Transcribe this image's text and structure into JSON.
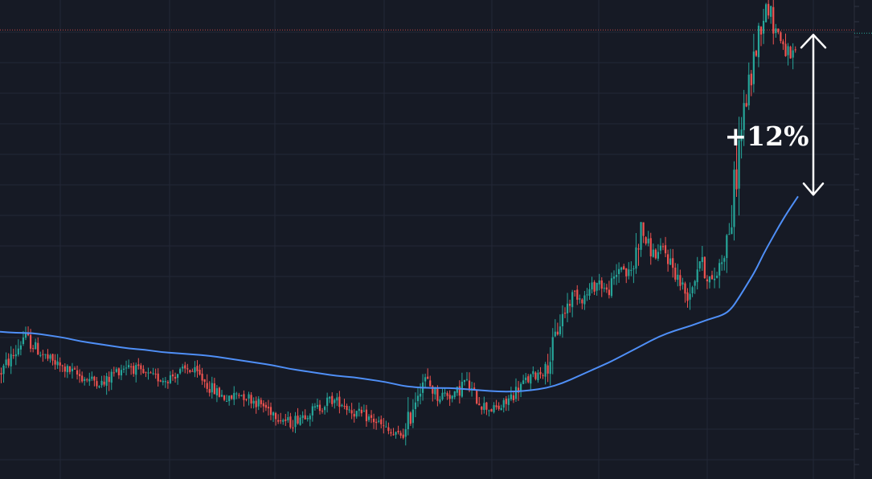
{
  "chart_data": {
    "type": "candlestick",
    "annotation": {
      "text": "+12%"
    },
    "colors": {
      "background": "#161a25",
      "grid": "#232836",
      "up": "#26a69a",
      "down": "#ef5350",
      "moving_average": "#4f8ff7",
      "annotation": "#ffffff",
      "price_line": "#ef5350"
    },
    "grid": true,
    "price_line_level": 115.5,
    "y_range": [
      78,
      118
    ],
    "moving_average": [
      [
        0,
        90.3
      ],
      [
        20,
        90.2
      ],
      [
        40,
        90.2
      ],
      [
        60,
        90.0
      ],
      [
        80,
        89.8
      ],
      [
        100,
        89.5
      ],
      [
        120,
        89.3
      ],
      [
        140,
        89.1
      ],
      [
        160,
        88.9
      ],
      [
        180,
        88.8
      ],
      [
        200,
        88.6
      ],
      [
        220,
        88.5
      ],
      [
        240,
        88.4
      ],
      [
        260,
        88.3
      ],
      [
        280,
        88.1
      ],
      [
        300,
        87.9
      ],
      [
        320,
        87.7
      ],
      [
        340,
        87.5
      ],
      [
        360,
        87.2
      ],
      [
        380,
        87.0
      ],
      [
        400,
        86.8
      ],
      [
        420,
        86.6
      ],
      [
        440,
        86.5
      ],
      [
        460,
        86.3
      ],
      [
        480,
        86.1
      ],
      [
        500,
        85.8
      ],
      [
        510,
        85.7
      ],
      [
        530,
        85.6
      ],
      [
        560,
        85.6
      ],
      [
        580,
        85.5
      ],
      [
        600,
        85.4
      ],
      [
        620,
        85.3
      ],
      [
        640,
        85.3
      ],
      [
        660,
        85.4
      ],
      [
        680,
        85.6
      ],
      [
        700,
        86.0
      ],
      [
        720,
        86.6
      ],
      [
        740,
        87.2
      ],
      [
        760,
        87.8
      ],
      [
        780,
        88.5
      ],
      [
        800,
        89.2
      ],
      [
        820,
        89.9
      ],
      [
        840,
        90.4
      ],
      [
        860,
        90.8
      ],
      [
        880,
        91.3
      ],
      [
        900,
        91.7
      ],
      [
        910,
        92.2
      ],
      [
        920,
        93.2
      ],
      [
        930,
        94.3
      ],
      [
        940,
        95.4
      ],
      [
        950,
        96.8
      ],
      [
        960,
        98.0
      ],
      [
        970,
        99.2
      ],
      [
        980,
        100.3
      ],
      [
        993,
        101.6
      ]
    ],
    "price_path": [
      [
        0,
        86.8
      ],
      [
        10,
        87.8
      ],
      [
        20,
        88.6
      ],
      [
        30,
        90.0
      ],
      [
        40,
        89.2
      ],
      [
        50,
        88.6
      ],
      [
        60,
        88.0
      ],
      [
        75,
        87.4
      ],
      [
        90,
        86.9
      ],
      [
        105,
        86.4
      ],
      [
        120,
        86.2
      ],
      [
        130,
        85.9
      ],
      [
        140,
        86.8
      ],
      [
        150,
        87.2
      ],
      [
        160,
        87.6
      ],
      [
        175,
        86.8
      ],
      [
        190,
        86.5
      ],
      [
        205,
        86.3
      ],
      [
        220,
        86.8
      ],
      [
        235,
        87.2
      ],
      [
        250,
        86.5
      ],
      [
        262,
        85.6
      ],
      [
        275,
        85.0
      ],
      [
        285,
        84.6
      ],
      [
        295,
        85.2
      ],
      [
        310,
        84.8
      ],
      [
        325,
        84.2
      ],
      [
        340,
        83.6
      ],
      [
        352,
        83.0
      ],
      [
        362,
        82.6
      ],
      [
        372,
        83.2
      ],
      [
        385,
        83.6
      ],
      [
        398,
        84.0
      ],
      [
        410,
        84.6
      ],
      [
        425,
        84.4
      ],
      [
        440,
        83.6
      ],
      [
        455,
        83.2
      ],
      [
        468,
        82.8
      ],
      [
        478,
        82.2
      ],
      [
        490,
        81.6
      ],
      [
        505,
        81.8
      ],
      [
        512,
        83.8
      ],
      [
        520,
        85.4
      ],
      [
        528,
        86.4
      ],
      [
        535,
        85.8
      ],
      [
        545,
        84.8
      ],
      [
        555,
        85.2
      ],
      [
        565,
        84.8
      ],
      [
        578,
        86.2
      ],
      [
        590,
        85.0
      ],
      [
        600,
        84.2
      ],
      [
        612,
        83.8
      ],
      [
        625,
        84.0
      ],
      [
        635,
        84.8
      ],
      [
        645,
        85.6
      ],
      [
        655,
        86.2
      ],
      [
        668,
        86.8
      ],
      [
        680,
        87.2
      ],
      [
        688,
        89.0
      ],
      [
        695,
        90.8
      ],
      [
        705,
        92.4
      ],
      [
        715,
        93.6
      ],
      [
        725,
        93.0
      ],
      [
        735,
        93.8
      ],
      [
        745,
        94.6
      ],
      [
        755,
        93.6
      ],
      [
        765,
        94.6
      ],
      [
        772,
        96.0
      ],
      [
        780,
        95.0
      ],
      [
        788,
        95.6
      ],
      [
        797,
        99.2
      ],
      [
        805,
        97.6
      ],
      [
        815,
        96.6
      ],
      [
        825,
        97.2
      ],
      [
        835,
        96.0
      ],
      [
        845,
        94.6
      ],
      [
        855,
        93.2
      ],
      [
        862,
        94.4
      ],
      [
        870,
        96.4
      ],
      [
        878,
        95.2
      ],
      [
        886,
        94.4
      ],
      [
        894,
        95.6
      ],
      [
        902,
        97.4
      ],
      [
        910,
        99.6
      ],
      [
        916,
        103.6
      ],
      [
        922,
        107.2
      ],
      [
        928,
        109.6
      ],
      [
        935,
        111.8
      ],
      [
        942,
        114.6
      ],
      [
        948,
        116.4
      ],
      [
        955,
        117.6
      ],
      [
        962,
        116.0
      ],
      [
        970,
        115.0
      ],
      [
        978,
        113.8
      ],
      [
        985,
        112.6
      ],
      [
        992,
        114.6
      ]
    ],
    "annotation_range": {
      "top": 115.5,
      "bottom": 101.2
    }
  }
}
